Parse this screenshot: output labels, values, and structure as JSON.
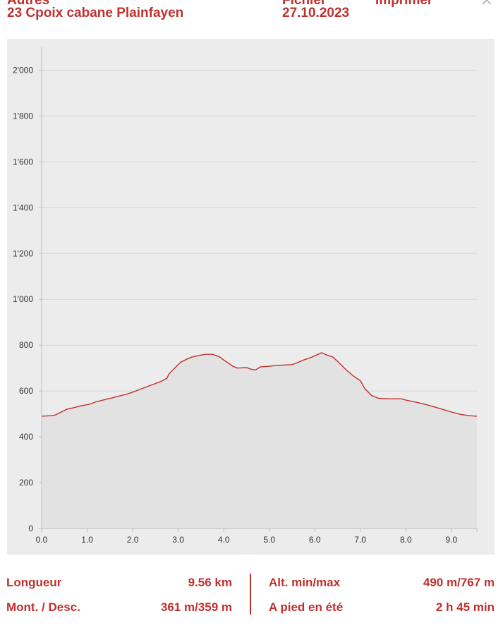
{
  "header": {
    "category_cut": "Autres",
    "title": "23 Cpoix cabane Plainfayen",
    "file_cut": "Fichier",
    "print_cut": "Imprimer",
    "date": "27.10.2023",
    "close_icon": "close-icon"
  },
  "chart_data": {
    "type": "area",
    "title": "",
    "xlabel": "",
    "ylabel": "",
    "xlim": [
      0,
      9.56
    ],
    "ylim": [
      0,
      2100
    ],
    "x_ticks": [
      "0.0",
      "1.0",
      "2.0",
      "3.0",
      "4.0",
      "5.0",
      "6.0",
      "7.0",
      "8.0",
      "9.0"
    ],
    "x_tick_values": [
      0,
      1,
      2,
      3,
      4,
      5,
      6,
      7,
      8,
      9
    ],
    "y_ticks": [
      "0",
      "200",
      "400",
      "600",
      "800",
      "1'000",
      "1'200",
      "1'400",
      "1'600",
      "1'800",
      "2'000"
    ],
    "y_tick_values": [
      0,
      200,
      400,
      600,
      800,
      1000,
      1200,
      1400,
      1600,
      1800,
      2000
    ],
    "grid": true,
    "line_color": "#c0302e",
    "fill_color": "#e2e2e2",
    "series": [
      {
        "points": [
          [
            0.0,
            490
          ],
          [
            0.2,
            492
          ],
          [
            0.3,
            495
          ],
          [
            0.4,
            505
          ],
          [
            0.55,
            520
          ],
          [
            0.7,
            527
          ],
          [
            0.85,
            535
          ],
          [
            1.0,
            540
          ],
          [
            1.05,
            542
          ],
          [
            1.2,
            553
          ],
          [
            1.4,
            563
          ],
          [
            1.55,
            570
          ],
          [
            1.7,
            578
          ],
          [
            1.85,
            585
          ],
          [
            2.0,
            595
          ],
          [
            2.2,
            610
          ],
          [
            2.4,
            625
          ],
          [
            2.6,
            640
          ],
          [
            2.75,
            655
          ],
          [
            2.8,
            675
          ],
          [
            2.95,
            705
          ],
          [
            3.05,
            725
          ],
          [
            3.2,
            740
          ],
          [
            3.3,
            748
          ],
          [
            3.45,
            755
          ],
          [
            3.6,
            760
          ],
          [
            3.75,
            760
          ],
          [
            3.9,
            750
          ],
          [
            4.0,
            735
          ],
          [
            4.1,
            722
          ],
          [
            4.2,
            708
          ],
          [
            4.3,
            700
          ],
          [
            4.5,
            702
          ],
          [
            4.6,
            695
          ],
          [
            4.7,
            692
          ],
          [
            4.8,
            705
          ],
          [
            5.0,
            708
          ],
          [
            5.2,
            712
          ],
          [
            5.5,
            715
          ],
          [
            5.6,
            722
          ],
          [
            5.75,
            735
          ],
          [
            5.9,
            745
          ],
          [
            6.05,
            758
          ],
          [
            6.15,
            767
          ],
          [
            6.25,
            758
          ],
          [
            6.4,
            748
          ],
          [
            6.55,
            720
          ],
          [
            6.7,
            690
          ],
          [
            6.85,
            665
          ],
          [
            7.0,
            645
          ],
          [
            7.1,
            610
          ],
          [
            7.25,
            580
          ],
          [
            7.4,
            568
          ],
          [
            7.6,
            566
          ],
          [
            7.9,
            566
          ],
          [
            8.0,
            560
          ],
          [
            8.2,
            552
          ],
          [
            8.4,
            543
          ],
          [
            8.6,
            532
          ],
          [
            8.8,
            520
          ],
          [
            9.0,
            508
          ],
          [
            9.2,
            498
          ],
          [
            9.4,
            492
          ],
          [
            9.56,
            490
          ]
        ]
      }
    ]
  },
  "stats": {
    "length_label": "Longueur",
    "length_value": "9.56 km",
    "ascent_label": "Mont. / Desc.",
    "ascent_value": "361 m/359 m",
    "alt_label": "Alt. min/max",
    "alt_value": "490 m/767 m",
    "walk_label": "A pied en été",
    "walk_value": "2 h 45 min"
  }
}
